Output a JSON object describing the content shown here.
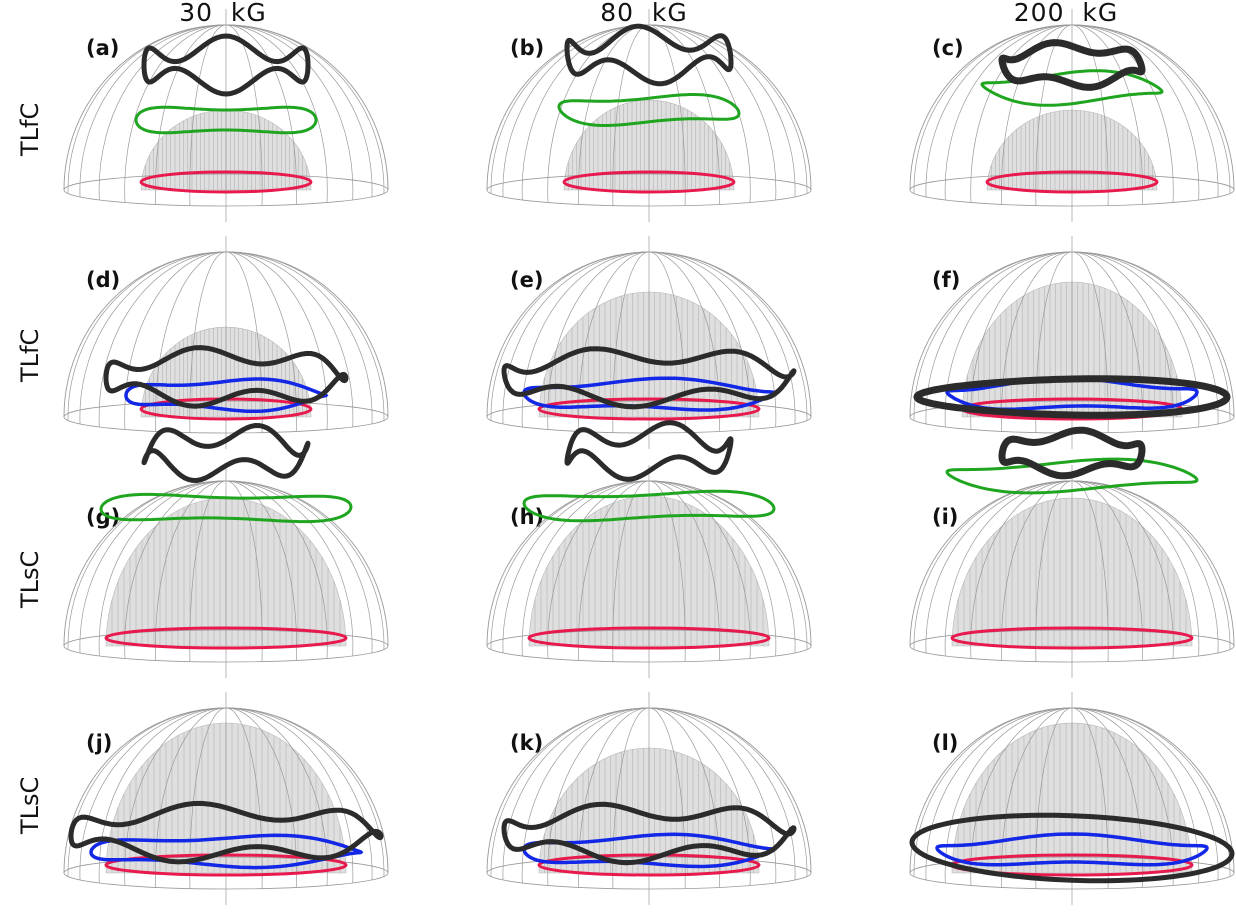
{
  "column_titles": [
    "30  kG",
    "80  kG",
    "200  kG"
  ],
  "row_labels": [
    "TLfC",
    "TLfC",
    "TLsC",
    "TLsC"
  ],
  "panels": [
    {
      "label": "(a)",
      "rings": [
        "red",
        "green"
      ],
      "loop": "wavy"
    },
    {
      "label": "(b)",
      "rings": [
        "red",
        "green"
      ],
      "loop": "wavy"
    },
    {
      "label": "(c)",
      "rings": [
        "red",
        "green"
      ],
      "loop": "band"
    },
    {
      "label": "(d)",
      "rings": [
        "red",
        "blue"
      ],
      "loop": "low"
    },
    {
      "label": "(e)",
      "rings": [
        "red",
        "blue"
      ],
      "loop": "low"
    },
    {
      "label": "(f)",
      "rings": [
        "red",
        "blue"
      ],
      "loop": "flat"
    },
    {
      "label": "(g)",
      "rings": [
        "red",
        "green"
      ],
      "loop": "wavy"
    },
    {
      "label": "(h)",
      "rings": [
        "red",
        "green"
      ],
      "loop": "wavy"
    },
    {
      "label": "(i)",
      "rings": [
        "red",
        "green"
      ],
      "loop": "band"
    },
    {
      "label": "(j)",
      "rings": [
        "red",
        "blue"
      ],
      "loop": "low"
    },
    {
      "label": "(k)",
      "rings": [
        "red",
        "blue"
      ],
      "loop": "low"
    },
    {
      "label": "(l)",
      "rings": [
        "red",
        "blue"
      ],
      "loop": "tilted"
    }
  ],
  "colors": {
    "red_ring": "#e8194d",
    "green_ring": "#1fa51f",
    "blue_ring": "#1228e6",
    "loop": "#2b2b2b",
    "grid": "#9a9a9a",
    "inner_dome": "#c4c4c4"
  }
}
